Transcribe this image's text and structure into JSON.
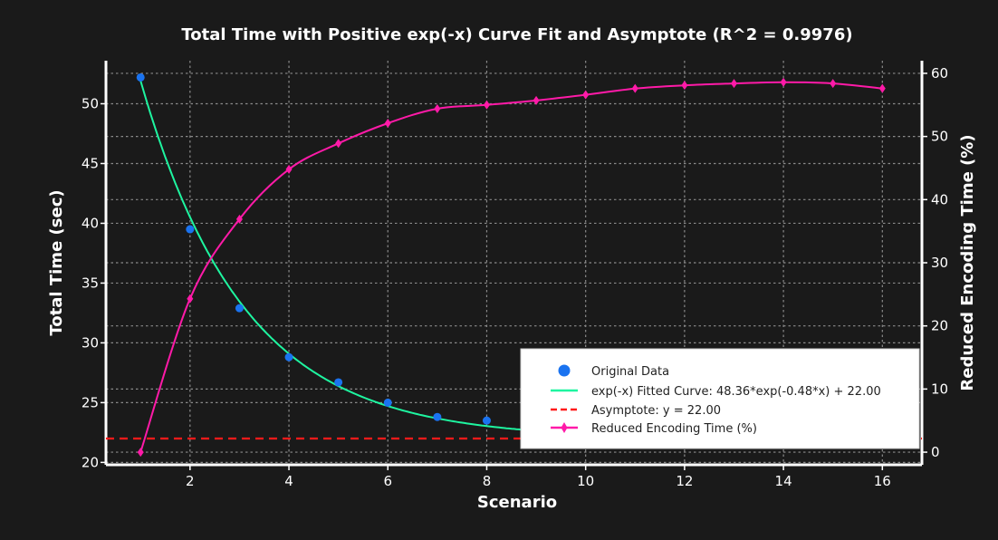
{
  "chart_data": {
    "type": "line",
    "title": "Total Time with Positive exp(-x) Curve Fit and Asymptote (R^2 = 0.9976)",
    "xlabel": "Scenario",
    "ylabel": "Total Time (sec)",
    "y2label": "Reduced Encoding Time (%)",
    "xlim": [
      0.3,
      16.8
    ],
    "ylim": [
      19.8,
      53.6
    ],
    "y2lim": [
      -2,
      62
    ],
    "x_ticks": [
      2,
      4,
      6,
      8,
      10,
      12,
      14,
      16
    ],
    "y_ticks": [
      20,
      25,
      30,
      35,
      40,
      45,
      50
    ],
    "y2_ticks": [
      0,
      10,
      20,
      30,
      40,
      50,
      60
    ],
    "grid": true,
    "legend_position": "lower-right",
    "colors": {
      "original": "#1a73f0",
      "fit": "#1ef5a0",
      "asymptote": "#ff1a1a",
      "reduced": "#ff1aa8",
      "background": "#1a1a1a",
      "grid": "#8a8a8a"
    },
    "series": [
      {
        "name": "Original Data",
        "label": "Original Data",
        "axis": "left",
        "kind": "scatter",
        "x": [
          1,
          2,
          3,
          4,
          5,
          6,
          7,
          8
        ],
        "values": [
          52.2,
          39.5,
          32.9,
          28.8,
          26.7,
          25.0,
          23.8,
          23.5
        ]
      },
      {
        "name": "fit",
        "label": "exp(-x) Fitted Curve: 48.36*exp(-0.48*x) + 22.00",
        "axis": "left",
        "kind": "curve",
        "a": 48.36,
        "b": 0.48,
        "c": 22.0,
        "x_range": [
          1,
          9
        ]
      },
      {
        "name": "asymptote",
        "label": "Asymptote: y = 22.00",
        "axis": "left",
        "kind": "hline",
        "value": 22.0
      },
      {
        "name": "Reduced Encoding Time (%)",
        "label": "Reduced Encoding Time (%)",
        "axis": "right",
        "kind": "line-diamond",
        "x": [
          1,
          2,
          3,
          4,
          5,
          6,
          7,
          8,
          9,
          10,
          11,
          12,
          13,
          14,
          15,
          16
        ],
        "values": [
          0,
          24.3,
          36.9,
          44.8,
          48.9,
          52.1,
          54.4,
          55.0,
          55.7,
          56.6,
          57.6,
          58.1,
          58.4,
          58.6,
          58.4,
          57.6
        ]
      }
    ]
  }
}
